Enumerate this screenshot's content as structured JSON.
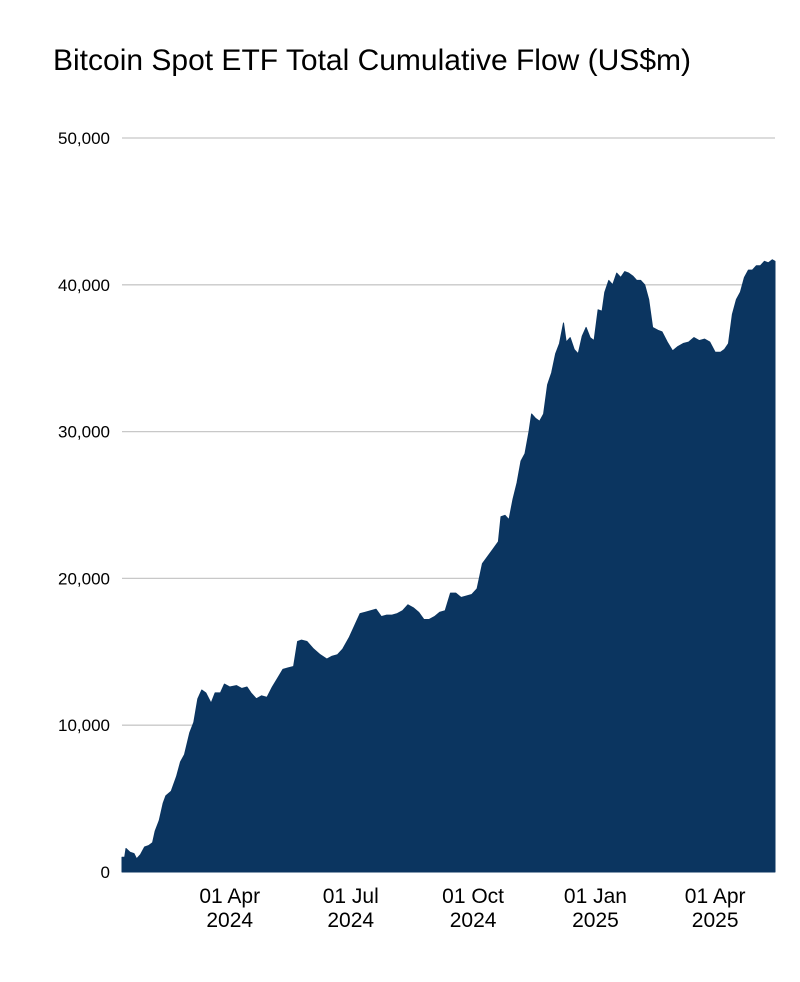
{
  "chart_data": {
    "type": "area",
    "title": "Bitcoin Spot ETF Total Cumulative Flow (US$m)",
    "xlabel": "",
    "ylabel": "",
    "ylim": [
      0,
      50000
    ],
    "xlim": [
      "2024-01-11",
      "2025-05-16"
    ],
    "grid": true,
    "fill_color": "#0b3560",
    "grid_color": "#c8c8c8",
    "yticks": [
      {
        "value": 0,
        "label": "0"
      },
      {
        "value": 10000,
        "label": "10,000"
      },
      {
        "value": 20000,
        "label": "20,000"
      },
      {
        "value": 30000,
        "label": "30,000"
      },
      {
        "value": 40000,
        "label": "40,000"
      },
      {
        "value": 50000,
        "label": "50,000"
      }
    ],
    "xticks": [
      {
        "date": "2024-04-01",
        "line1": "01 Apr",
        "line2": "2024"
      },
      {
        "date": "2024-07-01",
        "line1": "01 Jul",
        "line2": "2024"
      },
      {
        "date": "2024-10-01",
        "line1": "01 Oct",
        "line2": "2024"
      },
      {
        "date": "2025-01-01",
        "line1": "01 Jan",
        "line2": "2025"
      },
      {
        "date": "2025-04-01",
        "line1": "01 Apr",
        "line2": "2025"
      }
    ],
    "series": [
      {
        "points": [
          [
            "2024-01-11",
            1000
          ],
          [
            "2024-01-13",
            1000
          ],
          [
            "2024-01-14",
            1600
          ],
          [
            "2024-01-17",
            1350
          ],
          [
            "2024-01-20",
            1250
          ],
          [
            "2024-01-22",
            900
          ],
          [
            "2024-01-25",
            1200
          ],
          [
            "2024-01-28",
            1700
          ],
          [
            "2024-01-31",
            1800
          ],
          [
            "2024-02-03",
            2000
          ],
          [
            "2024-02-05",
            2800
          ],
          [
            "2024-02-08",
            3500
          ],
          [
            "2024-02-11",
            4700
          ],
          [
            "2024-02-13",
            5200
          ],
          [
            "2024-02-17",
            5500
          ],
          [
            "2024-02-21",
            6500
          ],
          [
            "2024-02-24",
            7500
          ],
          [
            "2024-02-27",
            8000
          ],
          [
            "2024-03-02",
            9500
          ],
          [
            "2024-03-05",
            10200
          ],
          [
            "2024-03-08",
            11800
          ],
          [
            "2024-03-11",
            12400
          ],
          [
            "2024-03-14",
            12200
          ],
          [
            "2024-03-18",
            11500
          ],
          [
            "2024-03-21",
            12200
          ],
          [
            "2024-03-25",
            12200
          ],
          [
            "2024-03-28",
            12800
          ],
          [
            "2024-04-01",
            12600
          ],
          [
            "2024-04-06",
            12700
          ],
          [
            "2024-04-10",
            12500
          ],
          [
            "2024-04-14",
            12600
          ],
          [
            "2024-04-17",
            12200
          ],
          [
            "2024-04-21",
            11800
          ],
          [
            "2024-04-25",
            12000
          ],
          [
            "2024-04-29",
            11900
          ],
          [
            "2024-05-03",
            12600
          ],
          [
            "2024-05-07",
            13200
          ],
          [
            "2024-05-11",
            13800
          ],
          [
            "2024-05-15",
            13900
          ],
          [
            "2024-05-19",
            14000
          ],
          [
            "2024-05-22",
            15700
          ],
          [
            "2024-05-25",
            15800
          ],
          [
            "2024-05-29",
            15700
          ],
          [
            "2024-06-03",
            15200
          ],
          [
            "2024-06-08",
            14800
          ],
          [
            "2024-06-13",
            14500
          ],
          [
            "2024-06-17",
            14700
          ],
          [
            "2024-06-21",
            14800
          ],
          [
            "2024-06-25",
            15200
          ],
          [
            "2024-06-30",
            16000
          ],
          [
            "2024-07-04",
            16800
          ],
          [
            "2024-07-08",
            17600
          ],
          [
            "2024-07-12",
            17700
          ],
          [
            "2024-07-16",
            17800
          ],
          [
            "2024-07-20",
            17900
          ],
          [
            "2024-07-24",
            17400
          ],
          [
            "2024-07-28",
            17500
          ],
          [
            "2024-08-01",
            17500
          ],
          [
            "2024-08-05",
            17600
          ],
          [
            "2024-08-09",
            17800
          ],
          [
            "2024-08-13",
            18200
          ],
          [
            "2024-08-17",
            18000
          ],
          [
            "2024-08-21",
            17700
          ],
          [
            "2024-08-25",
            17200
          ],
          [
            "2024-08-29",
            17200
          ],
          [
            "2024-09-02",
            17400
          ],
          [
            "2024-09-06",
            17700
          ],
          [
            "2024-09-10",
            17800
          ],
          [
            "2024-09-14",
            19000
          ],
          [
            "2024-09-18",
            19000
          ],
          [
            "2024-09-22",
            18700
          ],
          [
            "2024-09-26",
            18800
          ],
          [
            "2024-09-30",
            18900
          ],
          [
            "2024-10-04",
            19300
          ],
          [
            "2024-10-08",
            21000
          ],
          [
            "2024-10-12",
            21500
          ],
          [
            "2024-10-16",
            22000
          ],
          [
            "2024-10-20",
            22500
          ],
          [
            "2024-10-22",
            24200
          ],
          [
            "2024-10-25",
            24300
          ],
          [
            "2024-10-28",
            24000
          ],
          [
            "2024-10-31",
            25400
          ],
          [
            "2024-11-03",
            26500
          ],
          [
            "2024-11-06",
            28000
          ],
          [
            "2024-11-09",
            28500
          ],
          [
            "2024-11-12",
            30000
          ],
          [
            "2024-11-14",
            31200
          ],
          [
            "2024-11-17",
            30900
          ],
          [
            "2024-11-20",
            30700
          ],
          [
            "2024-11-23",
            31200
          ],
          [
            "2024-11-26",
            33200
          ],
          [
            "2024-11-29",
            34000
          ],
          [
            "2024-12-02",
            35300
          ],
          [
            "2024-12-05",
            36000
          ],
          [
            "2024-12-08",
            37400
          ],
          [
            "2024-12-10",
            36100
          ],
          [
            "2024-12-13",
            36400
          ],
          [
            "2024-12-16",
            35600
          ],
          [
            "2024-12-19",
            35300
          ],
          [
            "2024-12-22",
            36500
          ],
          [
            "2024-12-25",
            37100
          ],
          [
            "2024-12-28",
            36400
          ],
          [
            "2024-12-31",
            36200
          ],
          [
            "2025-01-03",
            38300
          ],
          [
            "2025-01-06",
            38200
          ],
          [
            "2025-01-08",
            39500
          ],
          [
            "2025-01-11",
            40300
          ],
          [
            "2025-01-14",
            40000
          ],
          [
            "2025-01-17",
            40800
          ],
          [
            "2025-01-20",
            40500
          ],
          [
            "2025-01-23",
            40900
          ],
          [
            "2025-01-26",
            40800
          ],
          [
            "2025-01-29",
            40600
          ],
          [
            "2025-02-01",
            40300
          ],
          [
            "2025-02-04",
            40300
          ],
          [
            "2025-02-07",
            40000
          ],
          [
            "2025-02-10",
            39000
          ],
          [
            "2025-02-13",
            37100
          ],
          [
            "2025-02-17",
            36900
          ],
          [
            "2025-02-20",
            36800
          ],
          [
            "2025-02-24",
            36100
          ],
          [
            "2025-02-28",
            35500
          ],
          [
            "2025-03-04",
            35800
          ],
          [
            "2025-03-08",
            36000
          ],
          [
            "2025-03-12",
            36100
          ],
          [
            "2025-03-16",
            36400
          ],
          [
            "2025-03-20",
            36200
          ],
          [
            "2025-03-24",
            36300
          ],
          [
            "2025-03-28",
            36100
          ],
          [
            "2025-04-01",
            35400
          ],
          [
            "2025-04-05",
            35400
          ],
          [
            "2025-04-08",
            35600
          ],
          [
            "2025-04-11",
            36000
          ],
          [
            "2025-04-14",
            38000
          ],
          [
            "2025-04-17",
            39000
          ],
          [
            "2025-04-20",
            39500
          ],
          [
            "2025-04-23",
            40500
          ],
          [
            "2025-04-26",
            41000
          ],
          [
            "2025-04-29",
            41000
          ],
          [
            "2025-05-02",
            41300
          ],
          [
            "2025-05-05",
            41300
          ],
          [
            "2025-05-08",
            41600
          ],
          [
            "2025-05-11",
            41500
          ],
          [
            "2025-05-14",
            41700
          ],
          [
            "2025-05-16",
            41600
          ]
        ]
      }
    ]
  }
}
